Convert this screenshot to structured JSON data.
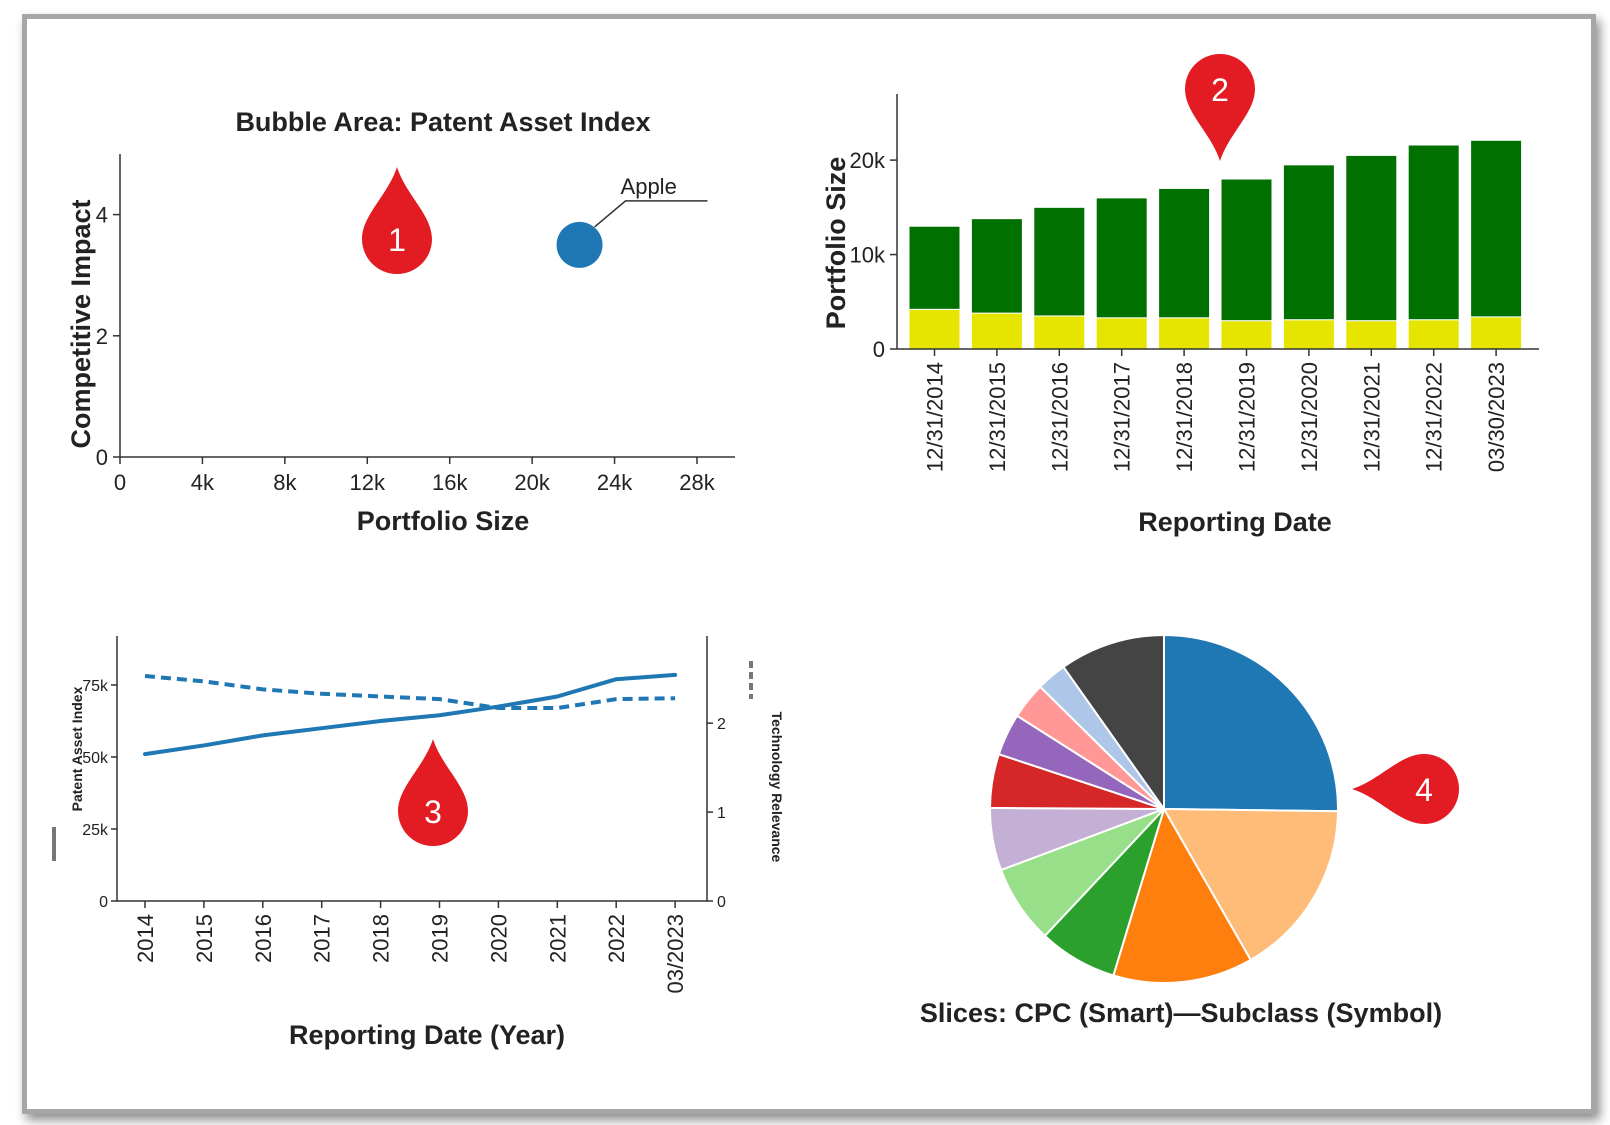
{
  "markers": [
    {
      "label": "1",
      "color": "#e31b23"
    },
    {
      "label": "2",
      "color": "#e31b23"
    },
    {
      "label": "3",
      "color": "#e31b23"
    },
    {
      "label": "4",
      "color": "#e31b23"
    }
  ],
  "chart_data": [
    {
      "type": "scatter",
      "title": "Bubble Area:  Patent Asset Index",
      "xlabel": "Portfolio Size",
      "ylabel": "Competitive Impact",
      "xlim": [
        0,
        28000
      ],
      "ylim": [
        0,
        5
      ],
      "xticks": [
        0,
        4000,
        8000,
        12000,
        16000,
        20000,
        24000,
        28000
      ],
      "xtick_labels": [
        "0",
        "4k",
        "8k",
        "12k",
        "16k",
        "20k",
        "24k",
        "28k"
      ],
      "yticks": [
        0,
        2,
        4
      ],
      "ytick_labels": [
        "0",
        "2",
        "4"
      ],
      "points": [
        {
          "label": "Apple",
          "x": 22300,
          "y": 3.5,
          "color": "#1f77b4"
        }
      ]
    },
    {
      "type": "bar",
      "stacked": true,
      "xlabel": "Reporting Date",
      "ylabel": "Portfolio Size",
      "ylim": [
        0,
        27000
      ],
      "yticks": [
        0,
        10000,
        20000
      ],
      "ytick_labels": [
        "0",
        "10k",
        "20k"
      ],
      "categories": [
        "12/31/2014",
        "12/31/2015",
        "12/31/2016",
        "12/31/2017",
        "12/31/2018",
        "12/31/2019",
        "12/31/2020",
        "12/31/2021",
        "12/31/2022",
        "03/30/2023"
      ],
      "series": [
        {
          "color": "#e5e500",
          "values": [
            4200,
            3800,
            3500,
            3300,
            3300,
            3000,
            3100,
            3000,
            3100,
            3400
          ]
        },
        {
          "color": "#007000",
          "values": [
            8800,
            10000,
            11500,
            12700,
            13700,
            15000,
            16400,
            17500,
            18500,
            18700
          ]
        }
      ]
    },
    {
      "type": "line",
      "xlabel": "Reporting Date (Year)",
      "ylabel": "Patent Asset Index",
      "y2label": "Technology Relevance",
      "categories": [
        "2014",
        "2015",
        "2016",
        "2017",
        "2018",
        "2019",
        "2020",
        "2021",
        "2022",
        "03/2023"
      ],
      "ylim": [
        0,
        92000
      ],
      "yticks": [
        0,
        25000,
        50000,
        75000
      ],
      "ytick_labels": [
        "0",
        "25k",
        "50k",
        "75k"
      ],
      "y2lim": [
        0,
        2.98
      ],
      "y2ticks": [
        0,
        1,
        2
      ],
      "y2tick_labels": [
        "0",
        "1",
        "2"
      ],
      "series": [
        {
          "name": "Patent Asset Index",
          "axis": "left",
          "style": "solid",
          "color": "#1f77b4",
          "values": [
            51000,
            54000,
            57500,
            60000,
            62500,
            64500,
            67500,
            71000,
            77000,
            78500
          ]
        },
        {
          "name": "Technology Relevance",
          "axis": "right",
          "style": "dashed",
          "color": "#1f77b4",
          "values": [
            2.53,
            2.47,
            2.38,
            2.33,
            2.3,
            2.27,
            2.17,
            2.17,
            2.27,
            2.28
          ]
        }
      ]
    },
    {
      "type": "pie",
      "title": "Slices:  CPC (Smart)—Subclass (Symbol)",
      "slices": [
        {
          "value": 25.2,
          "color": "#1f77b4"
        },
        {
          "value": 16.5,
          "color": "#ffbb78"
        },
        {
          "value": 13.0,
          "color": "#ff7f0e"
        },
        {
          "value": 7.3,
          "color": "#2ca02c"
        },
        {
          "value": 7.3,
          "color": "#98df8a"
        },
        {
          "value": 5.8,
          "color": "#c5b0d5"
        },
        {
          "value": 5.0,
          "color": "#d62728"
        },
        {
          "value": 3.9,
          "color": "#9467bd"
        },
        {
          "value": 3.4,
          "color": "#ff9896"
        },
        {
          "value": 2.8,
          "color": "#aec7e8"
        },
        {
          "value": 9.8,
          "color": "#444444"
        }
      ]
    }
  ]
}
